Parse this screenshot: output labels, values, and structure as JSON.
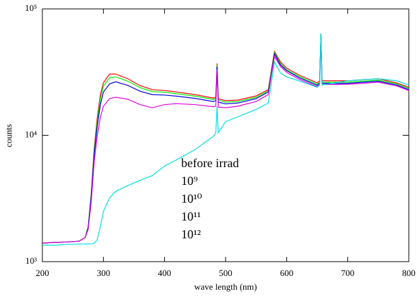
{
  "chart_data": {
    "type": "line",
    "x_label": "wave length (nm)",
    "y_label": "counts",
    "x": [
      200,
      220,
      240,
      260,
      270,
      275,
      280,
      285,
      290,
      295,
      300,
      310,
      320,
      340,
      360,
      380,
      400,
      420,
      450,
      480,
      484,
      486,
      488,
      500,
      520,
      550,
      570,
      575,
      580,
      590,
      600,
      620,
      650,
      654,
      656,
      658,
      680,
      700,
      750,
      780,
      800
    ],
    "series": [
      {
        "name": "before irrad",
        "color": "#ff0000",
        "values": [
          1400,
          1420,
          1430,
          1450,
          1550,
          1900,
          3500,
          8000,
          14000,
          21000,
          26000,
          30500,
          30500,
          28000,
          24700,
          23000,
          22600,
          22000,
          21000,
          19700,
          20000,
          37000,
          19500,
          18800,
          19000,
          20500,
          23000,
          33000,
          46000,
          38000,
          34000,
          30000,
          26000,
          27000,
          64000,
          27000,
          27000,
          27000,
          28000,
          26000,
          24000
        ]
      },
      {
        "name": "10⁹",
        "color": "#00ee00",
        "values": [
          1400,
          1420,
          1430,
          1450,
          1550,
          1900,
          3400,
          7600,
          13000,
          19500,
          24500,
          28500,
          29000,
          26800,
          23800,
          22200,
          21900,
          21300,
          20400,
          19200,
          19500,
          36000,
          19000,
          18300,
          18500,
          20000,
          22500,
          32000,
          45000,
          37000,
          33000,
          29200,
          25300,
          26300,
          63000,
          26300,
          26300,
          26300,
          27300,
          25500,
          23500
        ]
      },
      {
        "name": "10¹⁰",
        "color": "#0000dd",
        "values": [
          1400,
          1420,
          1430,
          1450,
          1550,
          1850,
          3300,
          7200,
          12000,
          17500,
          22000,
          25500,
          26500,
          24800,
          22300,
          21000,
          20800,
          20400,
          19600,
          18500,
          18800,
          35000,
          18300,
          17700,
          18000,
          19500,
          22000,
          31000,
          44000,
          36000,
          32500,
          28600,
          24800,
          25800,
          62000,
          25800,
          25800,
          25800,
          26800,
          25000,
          23000
        ]
      },
      {
        "name": "10¹¹",
        "color": "#dd00dd",
        "values": [
          1400,
          1420,
          1430,
          1450,
          1550,
          1800,
          3000,
          6300,
          10000,
          14000,
          17000,
          19500,
          20000,
          19300,
          17500,
          16500,
          17500,
          17800,
          17500,
          16800,
          17000,
          33000,
          16700,
          16500,
          17000,
          18500,
          21000,
          30000,
          42000,
          35000,
          31500,
          27800,
          24200,
          25200,
          61000,
          25200,
          25200,
          25300,
          26300,
          24600,
          22600
        ]
      },
      {
        "name": "10¹²",
        "color": "#00dddd",
        "values": [
          1350,
          1350,
          1370,
          1380,
          1380,
          1380,
          1380,
          1400,
          1500,
          1900,
          2500,
          3200,
          3600,
          4000,
          4400,
          4800,
          5700,
          6400,
          7700,
          9800,
          10500,
          17000,
          10500,
          12800,
          14000,
          16000,
          18000,
          26000,
          38000,
          31000,
          29000,
          27000,
          24000,
          25000,
          64000,
          25000,
          26000,
          27000,
          28000,
          27000,
          25000
        ]
      }
    ],
    "xlim": [
      200,
      800
    ],
    "xticks": [
      200,
      300,
      400,
      500,
      600,
      700,
      800
    ],
    "ylim": [
      1000,
      100000
    ],
    "log_y": true,
    "yticks": [
      {
        "value": 1000,
        "label": "10³"
      },
      {
        "value": 10000,
        "label": "10⁴"
      },
      {
        "value": 100000,
        "label": "10⁵"
      }
    ]
  }
}
